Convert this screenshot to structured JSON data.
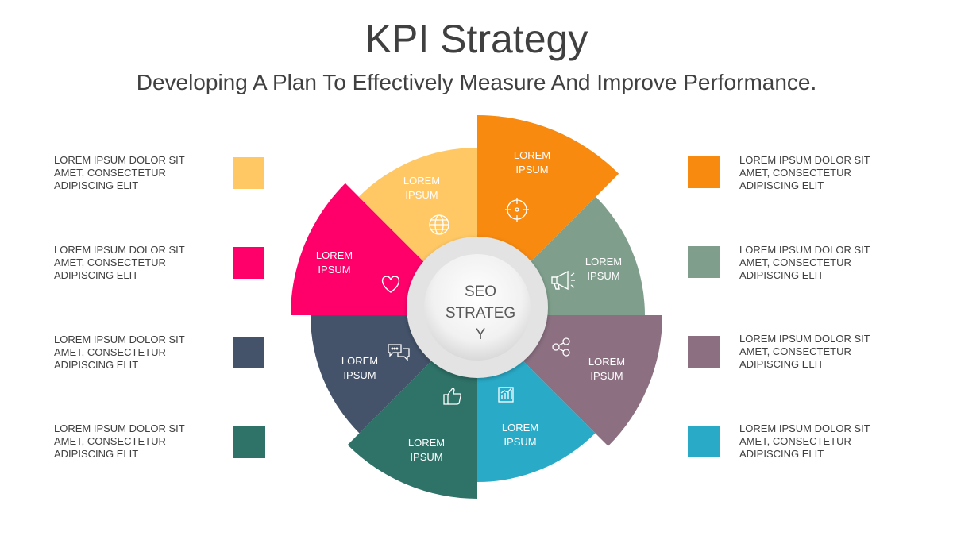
{
  "title": "KPI Strategy",
  "subtitle": "Developing A Plan To Effectively Measure And Improve Performance.",
  "center": {
    "lines": [
      "SEO",
      "STRATEG",
      "Y"
    ]
  },
  "segments": [
    {
      "id": "orange",
      "color": "#f88a0f",
      "label": [
        "LOREM",
        "IPSUM"
      ],
      "icon": "target-icon"
    },
    {
      "id": "sage",
      "color": "#7f9f8c",
      "label": [
        "LOREM",
        "IPSUM"
      ],
      "icon": "megaphone-icon"
    },
    {
      "id": "mauve",
      "color": "#8c7082",
      "label": [
        "LOREM",
        "IPSUM"
      ],
      "icon": "share-icon"
    },
    {
      "id": "cyan",
      "color": "#29abc8",
      "label": [
        "LOREM",
        "IPSUM"
      ],
      "icon": "bar-chart-icon"
    },
    {
      "id": "teal",
      "color": "#2e7268",
      "label": [
        "LOREM",
        "IPSUM"
      ],
      "icon": "thumbs-up-icon"
    },
    {
      "id": "slate",
      "color": "#44536a",
      "label": [
        "LOREM",
        "IPSUM"
      ],
      "icon": "chat-icon"
    },
    {
      "id": "pink",
      "color": "#ff006b",
      "label": [
        "LOREM",
        "IPSUM"
      ],
      "icon": "heart-icon"
    },
    {
      "id": "yellow",
      "color": "#ffc864",
      "label": [
        "LOREM",
        "IPSUM"
      ],
      "icon": "globe-icon"
    }
  ],
  "legend_left": [
    {
      "lines": [
        "LOREM IPSUM DOLOR SIT",
        "AMET, CONSECTETUR",
        "ADIPISCING ELIT"
      ],
      "color": "#ffc864"
    },
    {
      "lines": [
        "LOREM IPSUM DOLOR SIT",
        "AMET, CONSECTETUR",
        "ADIPISCING ELIT"
      ],
      "color": "#ff006b"
    },
    {
      "lines": [
        "LOREM IPSUM DOLOR SIT",
        "AMET, CONSECTETUR",
        "ADIPISCING ELIT"
      ],
      "color": "#44536a"
    },
    {
      "lines": [
        "LOREM IPSUM DOLOR SIT",
        "AMET, CONSECTETUR",
        "ADIPISCING ELIT"
      ],
      "color": "#2e7268"
    }
  ],
  "legend_right": [
    {
      "lines": [
        "LOREM IPSUM DOLOR SIT",
        "AMET, CONSECTETUR",
        "ADIPISCING ELIT"
      ],
      "color": "#f88a0f"
    },
    {
      "lines": [
        "LOREM IPSUM DOLOR SIT",
        "AMET, CONSECTETUR",
        "ADIPISCING ELIT"
      ],
      "color": "#7f9f8c"
    },
    {
      "lines": [
        "LOREM IPSUM DOLOR SIT",
        "AMET, CONSECTETUR",
        "ADIPISCING ELIT"
      ],
      "color": "#8c7082"
    },
    {
      "lines": [
        "LOREM IPSUM DOLOR SIT",
        "AMET, CONSECTETUR",
        "ADIPISCING ELIT"
      ],
      "color": "#29abc8"
    }
  ]
}
